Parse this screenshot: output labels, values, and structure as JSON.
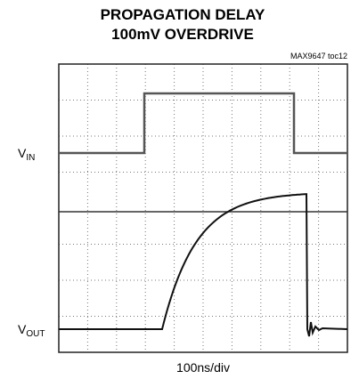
{
  "header": {
    "title": [
      "PROPAGATION DELAY",
      "100mV OVERDRIVE"
    ],
    "note": "MAX9647 toc12"
  },
  "labels": {
    "vin": {
      "main": "V",
      "sub": "IN"
    },
    "vout": {
      "main": "V",
      "sub": "OUT"
    },
    "time_scale": "100ns/div"
  }
}
